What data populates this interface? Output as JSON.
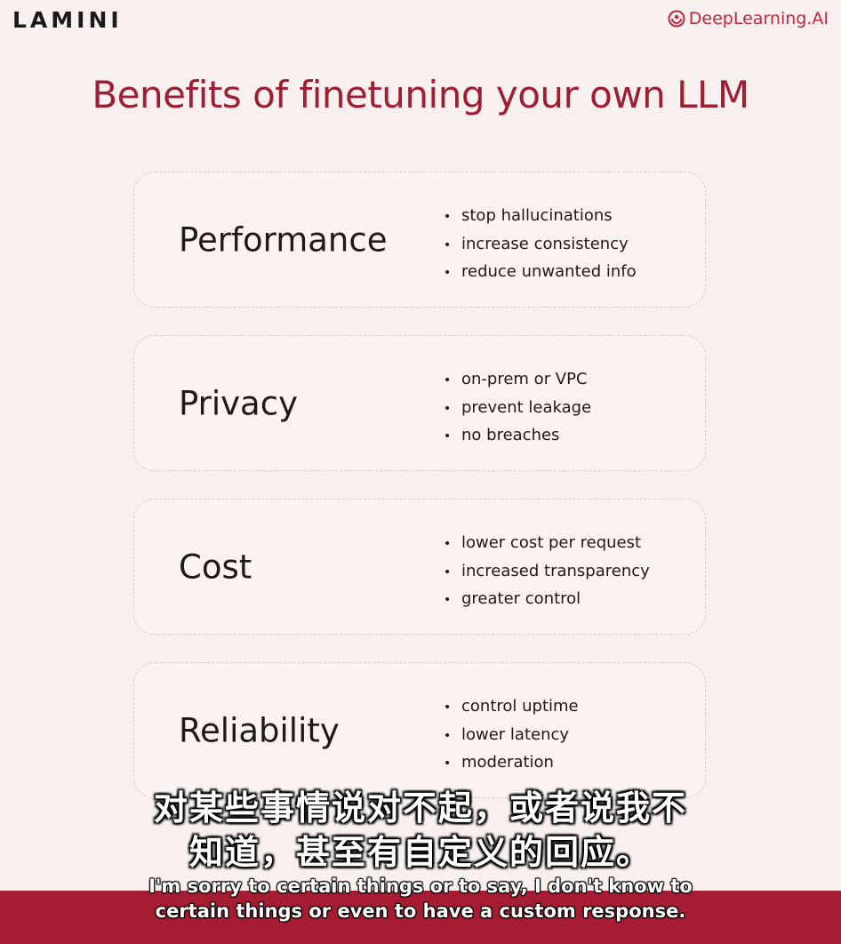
{
  "header": {
    "brand_left": "LAMINI",
    "brand_right": "DeepLearning.AI"
  },
  "title": "Benefits of finetuning your own LLM",
  "cards": [
    {
      "heading": "Performance",
      "bullets": [
        "stop hallucinations",
        "increase consistency",
        "reduce unwanted info"
      ]
    },
    {
      "heading": "Privacy",
      "bullets": [
        "on-prem or VPC",
        "prevent leakage",
        "no breaches"
      ]
    },
    {
      "heading": "Cost",
      "bullets": [
        "lower cost per request",
        "increased transparency",
        "greater control"
      ]
    },
    {
      "heading": "Reliability",
      "bullets": [
        "control uptime",
        "lower latency",
        "moderation"
      ]
    }
  ],
  "subtitles": {
    "zh_line1": "对某些事情说对不起，或者说我不",
    "zh_line2": "知道，甚至有自定义的回应。",
    "en_line1": "I'm sorry to certain things or to say, I don't know to",
    "en_line2": "certain things or even to have a custom response."
  },
  "colors": {
    "accent": "#9e1e32",
    "brand_red": "#c8253d",
    "subtitle_band": "#a61d33"
  }
}
